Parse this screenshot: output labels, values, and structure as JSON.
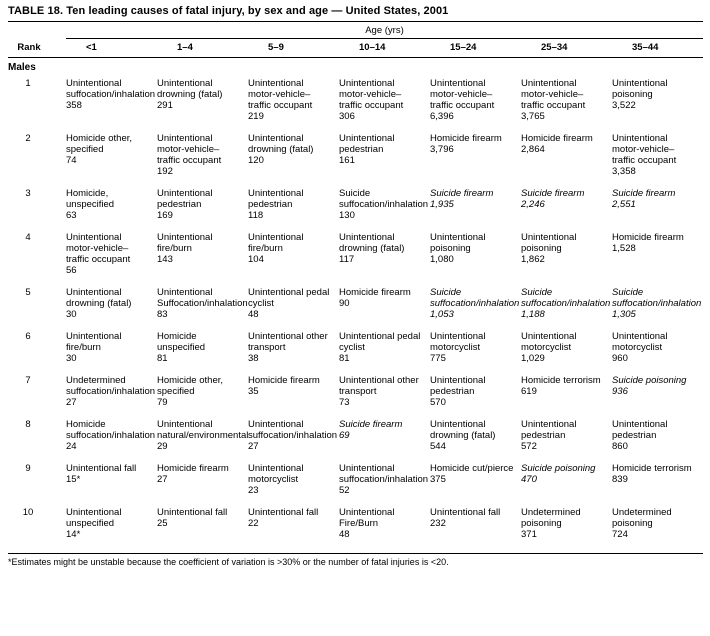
{
  "title": "TABLE 18. Ten leading causes of fatal injury, by sex and age — United States, 2001",
  "table": {
    "age_header": "Age (yrs)",
    "rank_header": "Rank",
    "columns": [
      "<1",
      "1–4",
      "5–9",
      "10–14",
      "15–24",
      "25–34",
      "35–44"
    ],
    "section": "Males",
    "rows": [
      {
        "rank": "1",
        "cells": [
          {
            "cause": "Unintentional suffocation/inhalation",
            "count": "358"
          },
          {
            "cause": "Unintentional drowning (fatal)",
            "count": "291"
          },
          {
            "cause": "Unintentional motor-vehicle–traffic occupant",
            "count": "219"
          },
          {
            "cause": "Unintentional motor-vehicle–traffic occupant",
            "count": "306"
          },
          {
            "cause": "Unintentional motor-vehicle–traffic occupant",
            "count": "6,396"
          },
          {
            "cause": "Unintentional motor-vehicle–traffic occupant",
            "count": "3,765"
          },
          {
            "cause": "Unintentional poisoning",
            "count": "3,522"
          }
        ]
      },
      {
        "rank": "2",
        "cells": [
          {
            "cause": "Homicide other, specified",
            "count": "74"
          },
          {
            "cause": "Unintentional motor-vehicle–traffic occupant",
            "count": "192"
          },
          {
            "cause": "Unintentional drowning (fatal)",
            "count": "120"
          },
          {
            "cause": "Unintentional pedestrian",
            "count": "161"
          },
          {
            "cause": "Homicide firearm",
            "count": "3,796"
          },
          {
            "cause": "Homicide firearm",
            "count": "2,864"
          },
          {
            "cause": "Unintentional motor-vehicle–traffic occupant",
            "count": "3,358"
          }
        ]
      },
      {
        "rank": "3",
        "cells": [
          {
            "cause": "Homicide, unspecified",
            "count": "63"
          },
          {
            "cause": "Unintentional pedestrian",
            "count": "169"
          },
          {
            "cause": "Unintentional pedestrian",
            "count": "118"
          },
          {
            "cause": "Suicide suffocation/inhalation",
            "count": "130"
          },
          {
            "cause": "Suicide firearm",
            "count": "1,935",
            "italic": true
          },
          {
            "cause": "Suicide firearm",
            "count": "2,246",
            "italic": true
          },
          {
            "cause": "Suicide firearm",
            "count": "2,551",
            "italic": true
          }
        ]
      },
      {
        "rank": "4",
        "cells": [
          {
            "cause": "Unintentional motor-vehicle–traffic occupant",
            "count": "56"
          },
          {
            "cause": "Unintentional fire/burn",
            "count": "143"
          },
          {
            "cause": "Unintentional fire/burn",
            "count": "104"
          },
          {
            "cause": "Unintentional drowning (fatal)",
            "count": "117"
          },
          {
            "cause": "Unintentional poisoning",
            "count": "1,080"
          },
          {
            "cause": "Unintentional poisoning",
            "count": "1,862"
          },
          {
            "cause": "Homicide firearm",
            "count": "1,528"
          }
        ]
      },
      {
        "rank": "5",
        "cells": [
          {
            "cause": "Unintentional drowning (fatal)",
            "count": "30"
          },
          {
            "cause": "Unintentional Suffocation/inhalation",
            "count": "83"
          },
          {
            "cause": "Unintentional pedal cyclist",
            "count": "48"
          },
          {
            "cause": "Homicide firearm",
            "count": "90"
          },
          {
            "cause": "Suicide suffocation/inhalation",
            "count": "1,053",
            "italic": true
          },
          {
            "cause": "Suicide suffocation/inhalation",
            "count": "1,188",
            "italic": true
          },
          {
            "cause": "Suicide suffocation/inhalation",
            "count": "1,305",
            "italic": true
          }
        ]
      },
      {
        "rank": "6",
        "cells": [
          {
            "cause": "Unintentional fire/burn",
            "count": "30"
          },
          {
            "cause": "Homicide unspecified",
            "count": "81"
          },
          {
            "cause": "Unintentional other transport",
            "count": "38"
          },
          {
            "cause": "Unintentional pedal cyclist",
            "count": "81"
          },
          {
            "cause": "Unintentional motorcyclist",
            "count": "775"
          },
          {
            "cause": "Unintentional motorcyclist",
            "count": "1,029"
          },
          {
            "cause": "Unintentional motorcyclist",
            "count": "960"
          }
        ]
      },
      {
        "rank": "7",
        "cells": [
          {
            "cause": "Undetermined suffocation/inhalation",
            "count": "27"
          },
          {
            "cause": "Homicide other, specified",
            "count": "79"
          },
          {
            "cause": "Homicide firearm",
            "count": "35"
          },
          {
            "cause": "Unintentional other transport",
            "count": "73"
          },
          {
            "cause": "Unintentional pedestrian",
            "count": "570"
          },
          {
            "cause": "Homicide terrorism",
            "count": "619"
          },
          {
            "cause": "Suicide poisoning",
            "count": "936",
            "italic": true
          }
        ]
      },
      {
        "rank": "8",
        "cells": [
          {
            "cause": "Homicide suffocation/inhalation",
            "count": "24"
          },
          {
            "cause": "Unintentional natural/environmental",
            "count": "29"
          },
          {
            "cause": "Unintentional suffocation/inhalation",
            "count": "27"
          },
          {
            "cause": "Suicide firearm",
            "count": "69",
            "italic": true
          },
          {
            "cause": "Unintentional drowning (fatal)",
            "count": "544"
          },
          {
            "cause": "Unintentional pedestrian",
            "count": "572"
          },
          {
            "cause": "Unintentional pedestrian",
            "count": "860"
          }
        ]
      },
      {
        "rank": "9",
        "cells": [
          {
            "cause": "Unintentional fall",
            "count": "15*"
          },
          {
            "cause": "Homicide firearm",
            "count": "27"
          },
          {
            "cause": "Unintentional motorcyclist",
            "count": "23"
          },
          {
            "cause": "Unintentional suffocation/inhalation",
            "count": "52"
          },
          {
            "cause": "Homicide cut/pierce",
            "count": "375"
          },
          {
            "cause": "Suicide poisoning",
            "count": "470",
            "italic": true
          },
          {
            "cause": "Homicide terrorism",
            "count": "839"
          }
        ]
      },
      {
        "rank": "10",
        "cells": [
          {
            "cause": "Unintentional unspecified",
            "count": "14*"
          },
          {
            "cause": "Unintentional fall",
            "count": "25"
          },
          {
            "cause": "Unintentional fall",
            "count": "22"
          },
          {
            "cause": "Unintentional Fire/Burn",
            "count": "48"
          },
          {
            "cause": "Unintentional fall",
            "count": "232"
          },
          {
            "cause": "Undetermined poisoning",
            "count": "371"
          },
          {
            "cause": "Undetermined poisoning",
            "count": "724"
          }
        ]
      }
    ]
  },
  "footnote": "*Estimates might be unstable because the coefficient of variation is >30% or the number of fatal injuries is <20."
}
